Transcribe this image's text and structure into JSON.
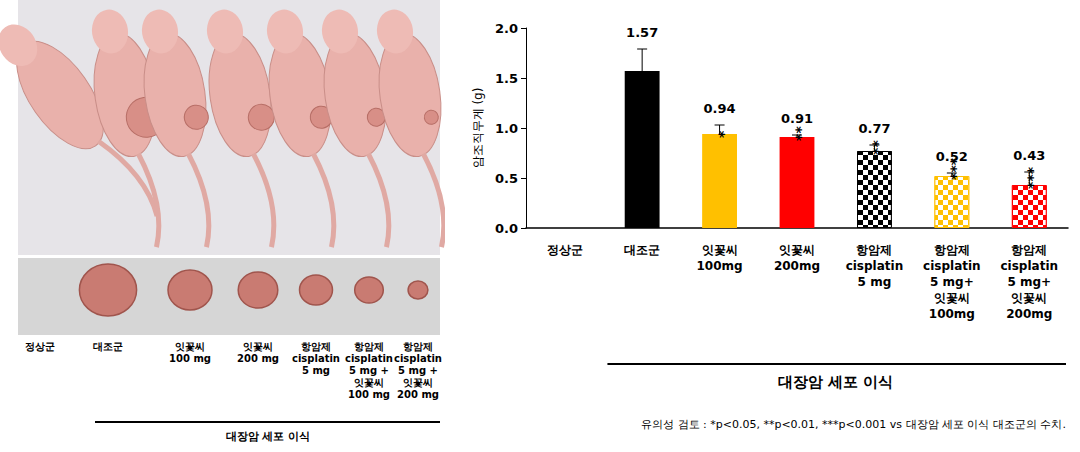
{
  "chart_data": {
    "type": "bar",
    "categories": [
      "정상군",
      "대조군",
      "잇꽃씨\n100mg",
      "잇꽃씨\n200mg",
      "항암제\ncisplatin\n5 mg",
      "항암제\ncisplatin\n5 mg+\n잇꽃씨\n100mg",
      "항암제\ncisplatin\n5 mg+\n잇꽃씨\n200mg"
    ],
    "values": [
      null,
      1.57,
      0.94,
      0.91,
      0.77,
      0.52,
      0.43
    ],
    "errors": [
      null,
      0.22,
      0.09,
      0.02,
      0.06,
      0.03,
      0.13
    ],
    "significance": [
      null,
      null,
      "*",
      "**",
      "**",
      "***",
      "***"
    ],
    "colors": [
      "#000000",
      "#000000",
      "#FFC000",
      "#FF0000",
      "#000000",
      "#FFC000",
      "#FF0000"
    ],
    "y_label": "암조직무게 (g)",
    "ylim": [
      0,
      2.0
    ],
    "yticks": [
      {
        "value": 0,
        "label": "0.0"
      },
      {
        "value": 0.5,
        "label": "0.5"
      },
      {
        "value": 1.0,
        "label": "1.0"
      },
      {
        "value": 1.5,
        "label": "1.5"
      },
      {
        "value": 2.0,
        "label": "2.0"
      }
    ],
    "data_labels": true,
    "group_label": "대장암 세포 이식",
    "footnote": "유의성 검토 : *p<0.05, **p<0.01, ***p<0.001 vs 대장암 세포 이식 대조군의 수치."
  },
  "photo_panel": {
    "labels": [
      "정상군",
      "대조군",
      "잇꽃씨\n100 mg",
      "잇꽃씨\n200 mg",
      "항암제\ncisplatin\n5 mg",
      "항암제\ncisplatin\n5 mg +\n잇꽃씨\n100 mg",
      "항암제\ncisplatin\n5 mg +\n잇꽃씨\n200 mg"
    ],
    "group_label": "대장암 세포 이식"
  }
}
